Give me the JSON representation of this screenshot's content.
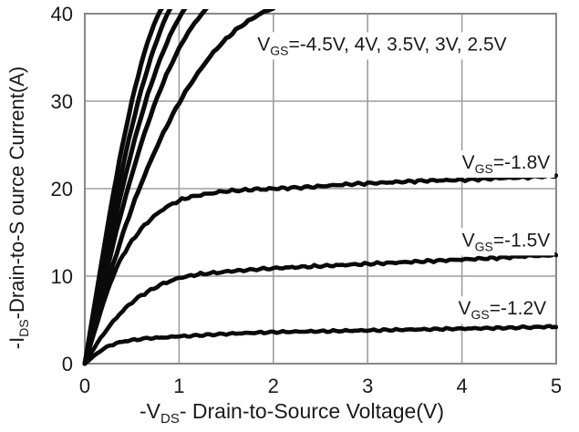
{
  "window": {
    "background": "#ffffff"
  },
  "chart_data": {
    "type": "line",
    "title": "",
    "xlabel": "-VDS- Drain-to-Source Voltage(V)",
    "ylabel": "-IDS-Drain-to-S ource Current(A)",
    "xlabel_parts": [
      {
        "t": "-V"
      },
      {
        "t": "DS",
        "sub": true
      },
      {
        "t": "- Drain-to-Source Voltage(V)"
      }
    ],
    "ylabel_parts": [
      {
        "t": "-I"
      },
      {
        "t": "DS",
        "sub": true
      },
      {
        "t": "-Drain-to-S ource Current(A)"
      }
    ],
    "xlim": [
      0,
      5
    ],
    "ylim": [
      0,
      40
    ],
    "xticks": [
      0,
      1,
      2,
      3,
      4,
      5
    ],
    "yticks": [
      0,
      10,
      20,
      30,
      40
    ],
    "grid": true,
    "legend_position": "none (inline curve labels)",
    "colors": {
      "curve": "#0a0a0a",
      "grid": "#9e9e9e",
      "border": "#888888",
      "text": "#1a1a1a",
      "background": "#ffffff"
    },
    "series": [
      {
        "name": "VGS=-4.5V",
        "width": 5,
        "noise": 0.12,
        "points": [
          [
            0,
            0
          ],
          [
            0.1,
            6.5
          ],
          [
            0.2,
            13
          ],
          [
            0.3,
            19.3
          ],
          [
            0.4,
            25
          ],
          [
            0.5,
            30
          ],
          [
            0.6,
            34.3
          ],
          [
            0.7,
            37.8
          ],
          [
            0.8,
            40.3
          ],
          [
            0.88,
            41.5
          ]
        ]
      },
      {
        "name": "VGS=-4V",
        "width": 5,
        "noise": 0.12,
        "points": [
          [
            0,
            0
          ],
          [
            0.1,
            5.8
          ],
          [
            0.2,
            11.6
          ],
          [
            0.3,
            17.2
          ],
          [
            0.4,
            22.4
          ],
          [
            0.5,
            27.1
          ],
          [
            0.6,
            31.3
          ],
          [
            0.7,
            34.9
          ],
          [
            0.8,
            38
          ],
          [
            0.9,
            40.5
          ],
          [
            0.96,
            41.5
          ]
        ]
      },
      {
        "name": "VGS=-3.5V",
        "width": 5,
        "noise": 0.12,
        "points": [
          [
            0,
            0
          ],
          [
            0.1,
            5.2
          ],
          [
            0.2,
            10.4
          ],
          [
            0.3,
            15.4
          ],
          [
            0.4,
            20.1
          ],
          [
            0.5,
            24.4
          ],
          [
            0.6,
            28.3
          ],
          [
            0.7,
            31.8
          ],
          [
            0.8,
            34.8
          ],
          [
            0.9,
            37.4
          ],
          [
            1.0,
            39.5
          ],
          [
            1.1,
            41.2
          ]
        ]
      },
      {
        "name": "VGS=-3V",
        "width": 5,
        "noise": 0.12,
        "points": [
          [
            0,
            0
          ],
          [
            0.1,
            4.6
          ],
          [
            0.2,
            9.2
          ],
          [
            0.3,
            13.6
          ],
          [
            0.4,
            17.8
          ],
          [
            0.5,
            21.6
          ],
          [
            0.6,
            25.2
          ],
          [
            0.7,
            28.4
          ],
          [
            0.8,
            31.3
          ],
          [
            0.9,
            33.8
          ],
          [
            1.0,
            36.0
          ],
          [
            1.1,
            37.9
          ],
          [
            1.2,
            39.4
          ],
          [
            1.3,
            40.7
          ]
        ]
      },
      {
        "name": "VGS=-2.5V",
        "width": 5,
        "noise": 0.14,
        "points": [
          [
            0,
            0
          ],
          [
            0.1,
            3.9
          ],
          [
            0.2,
            7.7
          ],
          [
            0.3,
            11.3
          ],
          [
            0.4,
            14.7
          ],
          [
            0.5,
            17.8
          ],
          [
            0.6,
            20.6
          ],
          [
            0.7,
            23.2
          ],
          [
            0.8,
            25.6
          ],
          [
            0.9,
            27.8
          ],
          [
            1.0,
            29.8
          ],
          [
            1.1,
            31.6
          ],
          [
            1.2,
            33.2
          ],
          [
            1.3,
            34.7
          ],
          [
            1.4,
            36.0
          ],
          [
            1.5,
            37.1
          ],
          [
            1.6,
            38.1
          ],
          [
            1.7,
            38.9
          ],
          [
            1.8,
            39.6
          ],
          [
            1.9,
            40.2
          ],
          [
            2.0,
            40.6
          ]
        ]
      },
      {
        "name": "VGS=-1.8V",
        "width": 4.6,
        "noise": 0.17,
        "points": [
          [
            0,
            0
          ],
          [
            0.1,
            3.5
          ],
          [
            0.2,
            7.0
          ],
          [
            0.3,
            10.0
          ],
          [
            0.4,
            12.3
          ],
          [
            0.5,
            14.0
          ],
          [
            0.6,
            15.4
          ],
          [
            0.7,
            16.5
          ],
          [
            0.8,
            17.4
          ],
          [
            0.9,
            18.1
          ],
          [
            1.0,
            18.6
          ],
          [
            1.1,
            19.0
          ],
          [
            1.3,
            19.4
          ],
          [
            1.5,
            19.7
          ],
          [
            1.8,
            19.9
          ],
          [
            2.0,
            20.0
          ],
          [
            2.4,
            20.2
          ],
          [
            2.8,
            20.5
          ],
          [
            3.2,
            20.7
          ],
          [
            3.6,
            20.9
          ],
          [
            4.0,
            21.0
          ],
          [
            4.4,
            21.2
          ],
          [
            4.7,
            21.3
          ],
          [
            5.0,
            21.5
          ]
        ]
      },
      {
        "name": "VGS=-1.5V",
        "width": 4.6,
        "noise": 0.17,
        "points": [
          [
            0,
            0
          ],
          [
            0.1,
            1.8
          ],
          [
            0.2,
            3.4
          ],
          [
            0.3,
            4.8
          ],
          [
            0.4,
            6.0
          ],
          [
            0.5,
            7.0
          ],
          [
            0.6,
            7.8
          ],
          [
            0.7,
            8.4
          ],
          [
            0.8,
            9.0
          ],
          [
            0.9,
            9.4
          ],
          [
            1.0,
            9.8
          ],
          [
            1.1,
            10.0
          ],
          [
            1.2,
            10.2
          ],
          [
            1.4,
            10.4
          ],
          [
            1.6,
            10.6
          ],
          [
            2.0,
            10.9
          ],
          [
            2.4,
            11.1
          ],
          [
            2.8,
            11.3
          ],
          [
            3.2,
            11.5
          ],
          [
            3.6,
            11.7
          ],
          [
            4.0,
            11.9
          ],
          [
            4.4,
            12.1
          ],
          [
            4.7,
            12.3
          ],
          [
            5.0,
            12.4
          ]
        ]
      },
      {
        "name": "VGS=-1.2V",
        "width": 4.6,
        "noise": 0.13,
        "points": [
          [
            0,
            0
          ],
          [
            0.1,
            0.9
          ],
          [
            0.2,
            1.7
          ],
          [
            0.3,
            2.2
          ],
          [
            0.4,
            2.5
          ],
          [
            0.5,
            2.7
          ],
          [
            0.7,
            2.9
          ],
          [
            1.0,
            3.1
          ],
          [
            1.5,
            3.4
          ],
          [
            2.0,
            3.6
          ],
          [
            2.5,
            3.7
          ],
          [
            3.0,
            3.8
          ],
          [
            3.5,
            3.9
          ],
          [
            4.0,
            4.0
          ],
          [
            4.5,
            4.1
          ],
          [
            5.0,
            4.25
          ]
        ]
      }
    ],
    "annotations": [
      {
        "name": "vgs-cluster-label",
        "x": 1.83,
        "y": 35.8,
        "parts": [
          {
            "t": "V"
          },
          {
            "t": "GS",
            "sub": true
          },
          {
            "t": "=-4.5V, 4V, 3.5V, 3V, 2.5V"
          }
        ]
      },
      {
        "name": "vgs-1.8-label",
        "x": 4.0,
        "y": 22.3,
        "parts": [
          {
            "t": "V"
          },
          {
            "t": "GS",
            "sub": true
          },
          {
            "t": "=-1.8V"
          }
        ]
      },
      {
        "name": "vgs-1.5-label",
        "x": 4.0,
        "y": 13.4,
        "parts": [
          {
            "t": "V"
          },
          {
            "t": "GS",
            "sub": true
          },
          {
            "t": "=-1.5V"
          }
        ]
      },
      {
        "name": "vgs-1.2-label",
        "x": 3.96,
        "y": 5.6,
        "parts": [
          {
            "t": "V"
          },
          {
            "t": "GS",
            "sub": true
          },
          {
            "t": "=-1.2V"
          }
        ]
      }
    ]
  }
}
